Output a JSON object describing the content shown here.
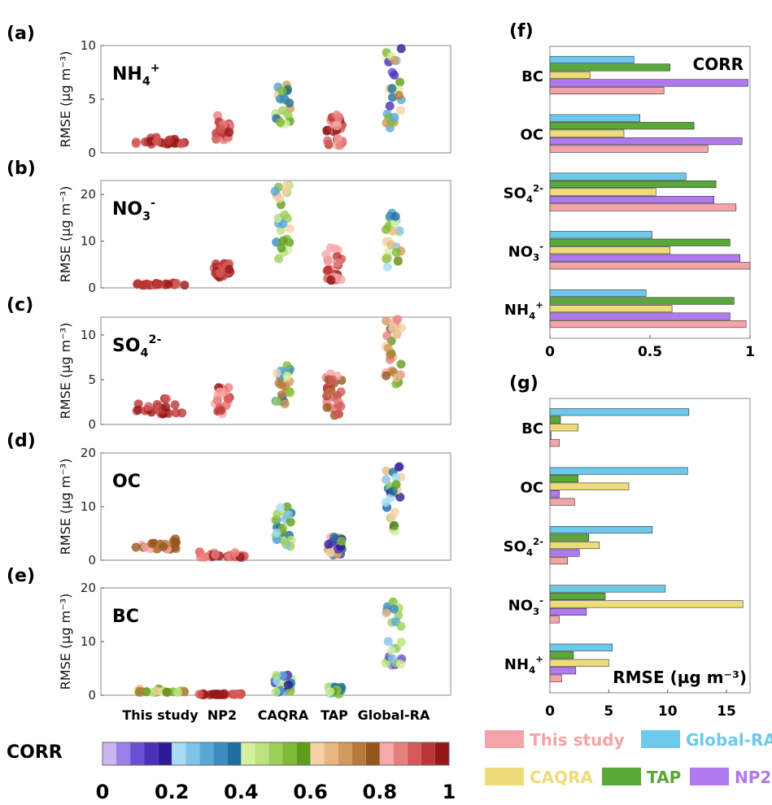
{
  "panel_labels": [
    "(a)",
    "(b)",
    "(c)",
    "(d)",
    "(e)",
    "(f)",
    "(g)"
  ],
  "colorbar": {
    "label": "CORR",
    "ticks": [
      "0",
      "0.2",
      "0.4",
      "0.6",
      "0.8",
      "1"
    ],
    "colors": [
      "#c9b6f0",
      "#9a80e8",
      "#6a4fd4",
      "#4a2fb8",
      "#2d1a96",
      "#a8dcf2",
      "#7fc4e6",
      "#58a8d6",
      "#3a8cc0",
      "#1f6f9e",
      "#d6f0a0",
      "#bbe27e",
      "#9cd058",
      "#7fbc36",
      "#5f9e1c",
      "#f6d0a6",
      "#e8b682",
      "#d49a5c",
      "#b8793a",
      "#94571e",
      "#f7a8a8",
      "#e87f7f",
      "#d45a5a",
      "#bb3636",
      "#951818"
    ]
  },
  "legend": [
    {
      "label": "This study",
      "color": "#f4a3a8"
    },
    {
      "label": "Global-RA",
      "color": "#6cc9ec"
    },
    {
      "label": "CAQRA",
      "color": "#eedc7a"
    },
    {
      "label": "TAP",
      "color": "#59a83a"
    },
    {
      "label": "NP2",
      "color": "#b07aee"
    }
  ],
  "chart_data": [
    {
      "type": "scatter",
      "panel": "(a)",
      "species_main": "NH",
      "species_sub": "4",
      "species_sup": "+",
      "ylabel": "RMSE (µg m⁻³)",
      "ylim": [
        0,
        10
      ],
      "yticks": [
        0,
        5,
        10
      ],
      "categories": [
        "This study",
        "NP2",
        "CAQRA",
        "TAP",
        "Global-RA"
      ],
      "groups": [
        {
          "name": "This study",
          "rmse_range": [
            0.6,
            1.6
          ],
          "corr_range": [
            0.88,
            1.0
          ]
        },
        {
          "name": "NP2",
          "rmse_range": [
            1.2,
            3.5
          ],
          "corr_range": [
            0.8,
            0.98
          ]
        },
        {
          "name": "CAQRA",
          "rmse_range": [
            2.6,
            6.5
          ],
          "corr_range": [
            0.3,
            0.7
          ]
        },
        {
          "name": "TAP",
          "rmse_range": [
            0.6,
            4.0
          ],
          "corr_range": [
            0.8,
            0.98
          ]
        },
        {
          "name": "Global-RA",
          "rmse_range": [
            2.2,
            10.0
          ],
          "corr_range": [
            0.1,
            0.75
          ]
        }
      ]
    },
    {
      "type": "scatter",
      "panel": "(b)",
      "species_main": "NO",
      "species_sub": "3",
      "species_sup": "-",
      "ylabel": "RMSE (µg m⁻³)",
      "ylim": [
        0,
        23
      ],
      "yticks": [
        0,
        10,
        20
      ],
      "categories": [
        "This study",
        "NP2",
        "CAQRA",
        "TAP",
        "Global-RA"
      ],
      "groups": [
        {
          "name": "This study",
          "rmse_range": [
            0.4,
            1.3
          ],
          "corr_range": [
            0.9,
            1.0
          ]
        },
        {
          "name": "NP2",
          "rmse_range": [
            1.5,
            5.3
          ],
          "corr_range": [
            0.88,
            1.0
          ]
        },
        {
          "name": "CAQRA",
          "rmse_range": [
            5.8,
            22.5
          ],
          "corr_range": [
            0.3,
            0.7
          ]
        },
        {
          "name": "TAP",
          "rmse_range": [
            1.5,
            9.3
          ],
          "corr_range": [
            0.8,
            0.98
          ]
        },
        {
          "name": "Global-RA",
          "rmse_range": [
            4.2,
            16.3
          ],
          "corr_range": [
            0.1,
            0.85
          ]
        }
      ]
    },
    {
      "type": "scatter",
      "panel": "(c)",
      "species_main": "SO",
      "species_sub": "4",
      "species_sup": "2-",
      "ylabel": "RMSE (µg m⁻³)",
      "ylim": [
        0,
        12
      ],
      "yticks": [
        0,
        5,
        10
      ],
      "categories": [
        "This study",
        "NP2",
        "CAQRA",
        "TAP",
        "Global-RA"
      ],
      "groups": [
        {
          "name": "This study",
          "rmse_range": [
            0.7,
            3.0
          ],
          "corr_range": [
            0.88,
            1.0
          ]
        },
        {
          "name": "NP2",
          "rmse_range": [
            1.2,
            4.3
          ],
          "corr_range": [
            0.8,
            0.98
          ]
        },
        {
          "name": "CAQRA",
          "rmse_range": [
            2.2,
            6.8
          ],
          "corr_range": [
            0.3,
            0.75
          ]
        },
        {
          "name": "TAP",
          "rmse_range": [
            1.0,
            5.8
          ],
          "corr_range": [
            0.75,
            0.95
          ]
        },
        {
          "name": "Global-RA",
          "rmse_range": [
            4.4,
            12.0
          ],
          "corr_range": [
            0.55,
            0.85
          ]
        }
      ]
    },
    {
      "type": "scatter",
      "panel": "(d)",
      "species_main": "OC",
      "species_sub": "",
      "species_sup": "",
      "ylabel": "RMSE (µg m⁻³)",
      "ylim": [
        0,
        20
      ],
      "yticks": [
        0,
        10,
        20
      ],
      "categories": [
        "This study",
        "NP2",
        "CAQRA",
        "TAP",
        "Global-RA"
      ],
      "groups": [
        {
          "name": "This study",
          "rmse_range": [
            1.5,
            4.2
          ],
          "corr_range": [
            0.72,
            0.82
          ]
        },
        {
          "name": "NP2",
          "rmse_range": [
            0.2,
            2.0
          ],
          "corr_range": [
            0.85,
            1.0
          ]
        },
        {
          "name": "CAQRA",
          "rmse_range": [
            2.4,
            10.2
          ],
          "corr_range": [
            0.2,
            0.6
          ]
        },
        {
          "name": "TAP",
          "rmse_range": [
            1.0,
            4.5
          ],
          "corr_range": [
            0.1,
            0.85
          ]
        },
        {
          "name": "Global-RA",
          "rmse_range": [
            5.3,
            18.5
          ],
          "corr_range": [
            0.05,
            0.65
          ]
        }
      ]
    },
    {
      "type": "scatter",
      "panel": "(e)",
      "species_main": "BC",
      "species_sub": "",
      "species_sup": "",
      "ylabel": "RMSE (µg m⁻³)",
      "ylim": [
        0,
        20
      ],
      "yticks": [
        0,
        10,
        20
      ],
      "categories": [
        "This study",
        "NP2",
        "CAQRA",
        "TAP",
        "Global-RA"
      ],
      "groups": [
        {
          "name": "This study",
          "rmse_range": [
            0.3,
            1.5
          ],
          "corr_range": [
            0.4,
            0.8
          ]
        },
        {
          "name": "NP2",
          "rmse_range": [
            0.0,
            0.4
          ],
          "corr_range": [
            0.9,
            1.0
          ]
        },
        {
          "name": "CAQRA",
          "rmse_range": [
            0.6,
            3.8
          ],
          "corr_range": [
            0.1,
            0.6
          ]
        },
        {
          "name": "TAP",
          "rmse_range": [
            0.2,
            1.6
          ],
          "corr_range": [
            0.2,
            0.6
          ]
        },
        {
          "name": "Global-RA",
          "rmse_range": [
            5.2,
            17.8
          ],
          "corr_range": [
            0.05,
            0.65
          ]
        }
      ]
    },
    {
      "type": "bar",
      "panel": "(f)",
      "orientation": "horizontal",
      "title": "CORR",
      "xlim": [
        0,
        1
      ],
      "xticks": [
        "0",
        "0.5",
        "1"
      ],
      "categories": [
        "BC",
        "OC",
        "SO4 2-",
        "NO3 -",
        "NH4 +"
      ],
      "category_labels": [
        {
          "main": "BC",
          "sub": "",
          "sup": ""
        },
        {
          "main": "OC",
          "sub": "",
          "sup": ""
        },
        {
          "main": "SO",
          "sub": "4",
          "sup": "2-"
        },
        {
          "main": "NO",
          "sub": "3",
          "sup": "-"
        },
        {
          "main": "NH",
          "sub": "4",
          "sup": "+"
        }
      ],
      "series": [
        {
          "name": "Global-RA",
          "values": [
            0.42,
            0.45,
            0.68,
            0.51,
            0.48
          ]
        },
        {
          "name": "TAP",
          "values": [
            0.6,
            0.72,
            0.83,
            0.9,
            0.92
          ]
        },
        {
          "name": "CAQRA",
          "values": [
            0.2,
            0.37,
            0.53,
            0.6,
            0.61
          ]
        },
        {
          "name": "NP2",
          "values": [
            0.99,
            0.96,
            0.82,
            0.95,
            0.9
          ]
        },
        {
          "name": "This study",
          "values": [
            0.57,
            0.79,
            0.93,
            1.0,
            0.98
          ]
        }
      ]
    },
    {
      "type": "bar",
      "panel": "(g)",
      "orientation": "horizontal",
      "title": "RMSE (µg m⁻³)",
      "xlim": [
        0,
        17
      ],
      "xticks": [
        "0",
        "5",
        "10",
        "15"
      ],
      "categories": [
        "BC",
        "OC",
        "SO4 2-",
        "NO3 -",
        "NH4 +"
      ],
      "category_labels": [
        {
          "main": "BC",
          "sub": "",
          "sup": ""
        },
        {
          "main": "OC",
          "sub": "",
          "sup": ""
        },
        {
          "main": "SO",
          "sub": "4",
          "sup": "2-"
        },
        {
          "main": "NO",
          "sub": "3",
          "sup": "-"
        },
        {
          "main": "NH",
          "sub": "4",
          "sup": "+"
        }
      ],
      "series": [
        {
          "name": "Global-RA",
          "values": [
            11.8,
            11.7,
            8.7,
            9.8,
            5.3
          ]
        },
        {
          "name": "TAP",
          "values": [
            0.9,
            2.4,
            3.3,
            4.7,
            2.0
          ]
        },
        {
          "name": "CAQRA",
          "values": [
            2.4,
            6.7,
            4.2,
            16.4,
            5.0
          ]
        },
        {
          "name": "NP2",
          "values": [
            0.1,
            0.8,
            2.5,
            3.1,
            2.2
          ]
        },
        {
          "name": "This study",
          "values": [
            0.8,
            2.1,
            1.5,
            0.8,
            1.0
          ]
        }
      ]
    }
  ]
}
